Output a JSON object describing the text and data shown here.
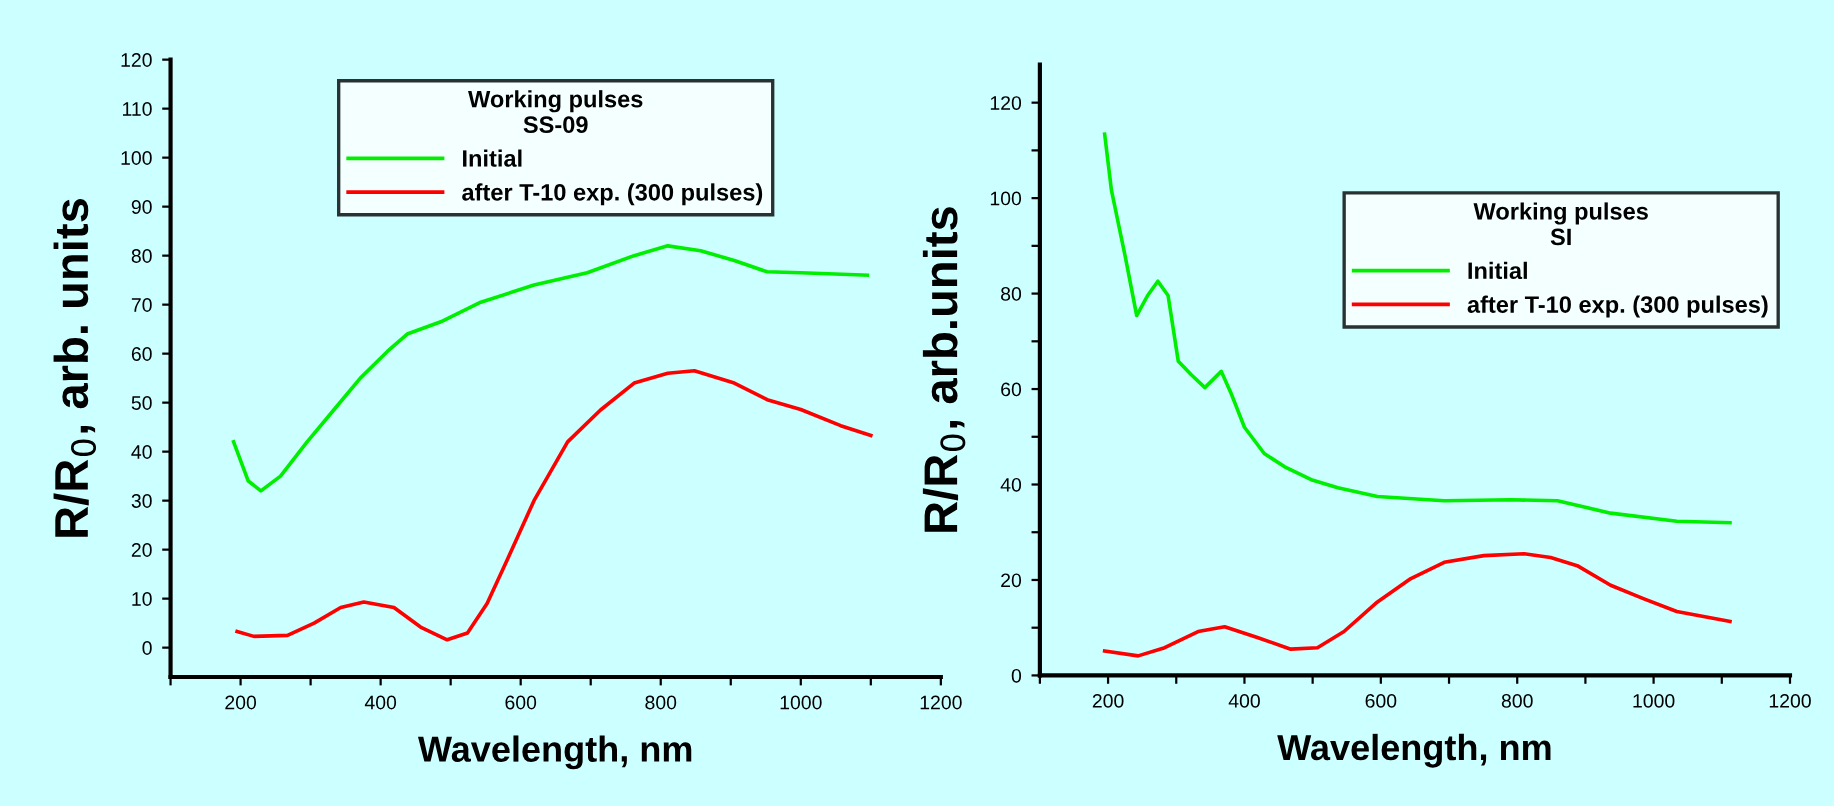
{
  "chart_data": [
    {
      "type": "line",
      "xlabel": "Wavelength, nm",
      "ylabel": "R/R$_{0}$, arb. units",
      "legend_title": "Working pulses\nSS-09",
      "legend": "top",
      "grid": false,
      "xlim": [
        100,
        1200
      ],
      "xticks": [
        {
          "value": 100,
          "label": null
        },
        200,
        {
          "value": 300,
          "label": null
        },
        400,
        {
          "value": 500,
          "label": null
        },
        600,
        {
          "value": 700,
          "label": null
        },
        800,
        {
          "value": 900,
          "label": null
        },
        1000,
        {
          "value": 1100,
          "label": null
        },
        1200
      ],
      "ylim": [
        -6,
        120
      ],
      "yticks": [
        0,
        10,
        20,
        30,
        40,
        50,
        60,
        70,
        80,
        90,
        100,
        110,
        120
      ],
      "series": [
        {
          "name": "Initial",
          "color": "#00ee00",
          "x": [
            190,
            211,
            229,
            257,
            295,
            333,
            371,
            410,
            438,
            486,
            543,
            619,
            695,
            762,
            810,
            857,
            905,
            952,
            1000,
            1095
          ],
          "values": [
            42,
            34,
            32,
            35,
            42,
            48.5,
            55,
            60.5,
            64,
            66.5,
            70.5,
            74,
            76.5,
            80,
            82,
            81,
            79,
            76.7,
            76.5,
            76
          ]
        },
        {
          "name": "after T-10 exp. (300 pulses)",
          "color": "#ff0000",
          "x": [
            195,
            219,
            267,
            305,
            343,
            376,
            419,
            457,
            495,
            524,
            552,
            581,
            619,
            667,
            714,
            762,
            810,
            848,
            905,
            952,
            1000,
            1057,
            1100
          ],
          "values": [
            3.3,
            2.3,
            2.5,
            5,
            8.2,
            9.3,
            8.2,
            4.2,
            1.6,
            3,
            9,
            18,
            30,
            42,
            48.5,
            54,
            56,
            56.5,
            54,
            50.6,
            48.6,
            45.3,
            43.3
          ]
        }
      ]
    },
    {
      "type": "line",
      "xlabel": "Wavelength, nm",
      "ylabel": "R/R$_{0}$, arb.units",
      "legend_title": "Working pulses\nSI",
      "legend": "right",
      "grid": false,
      "xlim": [
        100,
        1200
      ],
      "xticks": [
        {
          "value": 100,
          "label": null
        },
        200,
        {
          "value": 300,
          "label": null
        },
        400,
        {
          "value": 500,
          "label": null
        },
        600,
        {
          "value": 700,
          "label": null
        },
        800,
        {
          "value": 900,
          "label": null
        },
        1000,
        {
          "value": 1100,
          "label": null
        },
        1200
      ],
      "ylim": [
        0,
        128
      ],
      "yticks": [
        0,
        {
          "value": 10,
          "label": null
        },
        20,
        {
          "value": 30,
          "label": null
        },
        40,
        {
          "value": 50,
          "label": null
        },
        60,
        {
          "value": 70,
          "label": null
        },
        80,
        {
          "value": 90,
          "label": null
        },
        100,
        {
          "value": 110,
          "label": null
        },
        120
      ],
      "series": [
        {
          "name": "Initial",
          "color": "#00ee00",
          "x": [
            195,
            205,
            225,
            242,
            258,
            273,
            288,
            303,
            322,
            342,
            366,
            381,
            400,
            429,
            459,
            498,
            537,
            595,
            693,
            790,
            859,
            937,
            1034,
            1112
          ],
          "values": [
            113.4,
            101.6,
            87.9,
            75.4,
            79.6,
            82.6,
            79.6,
            65.8,
            63,
            60.3,
            63.7,
            58.9,
            52,
            46.5,
            43.7,
            41,
            39.3,
            37.5,
            36.6,
            36.8,
            36.6,
            34,
            32.3,
            32
          ]
        },
        {
          "name": "after T-10 exp. (300 pulses)",
          "color": "#ff0000",
          "x": [
            195,
            244,
            283,
            332,
            371,
            420,
            468,
            507,
            546,
            595,
            644,
            693,
            751,
            810,
            849,
            888,
            937,
            985,
            1034,
            1112
          ],
          "values": [
            5.1,
            4.1,
            5.8,
            9.2,
            10.2,
            7.9,
            5.5,
            5.8,
            9.2,
            15.4,
            20.3,
            23.7,
            25.1,
            25.5,
            24.7,
            23,
            18.9,
            16.1,
            13.4,
            11.3
          ]
        }
      ]
    }
  ]
}
